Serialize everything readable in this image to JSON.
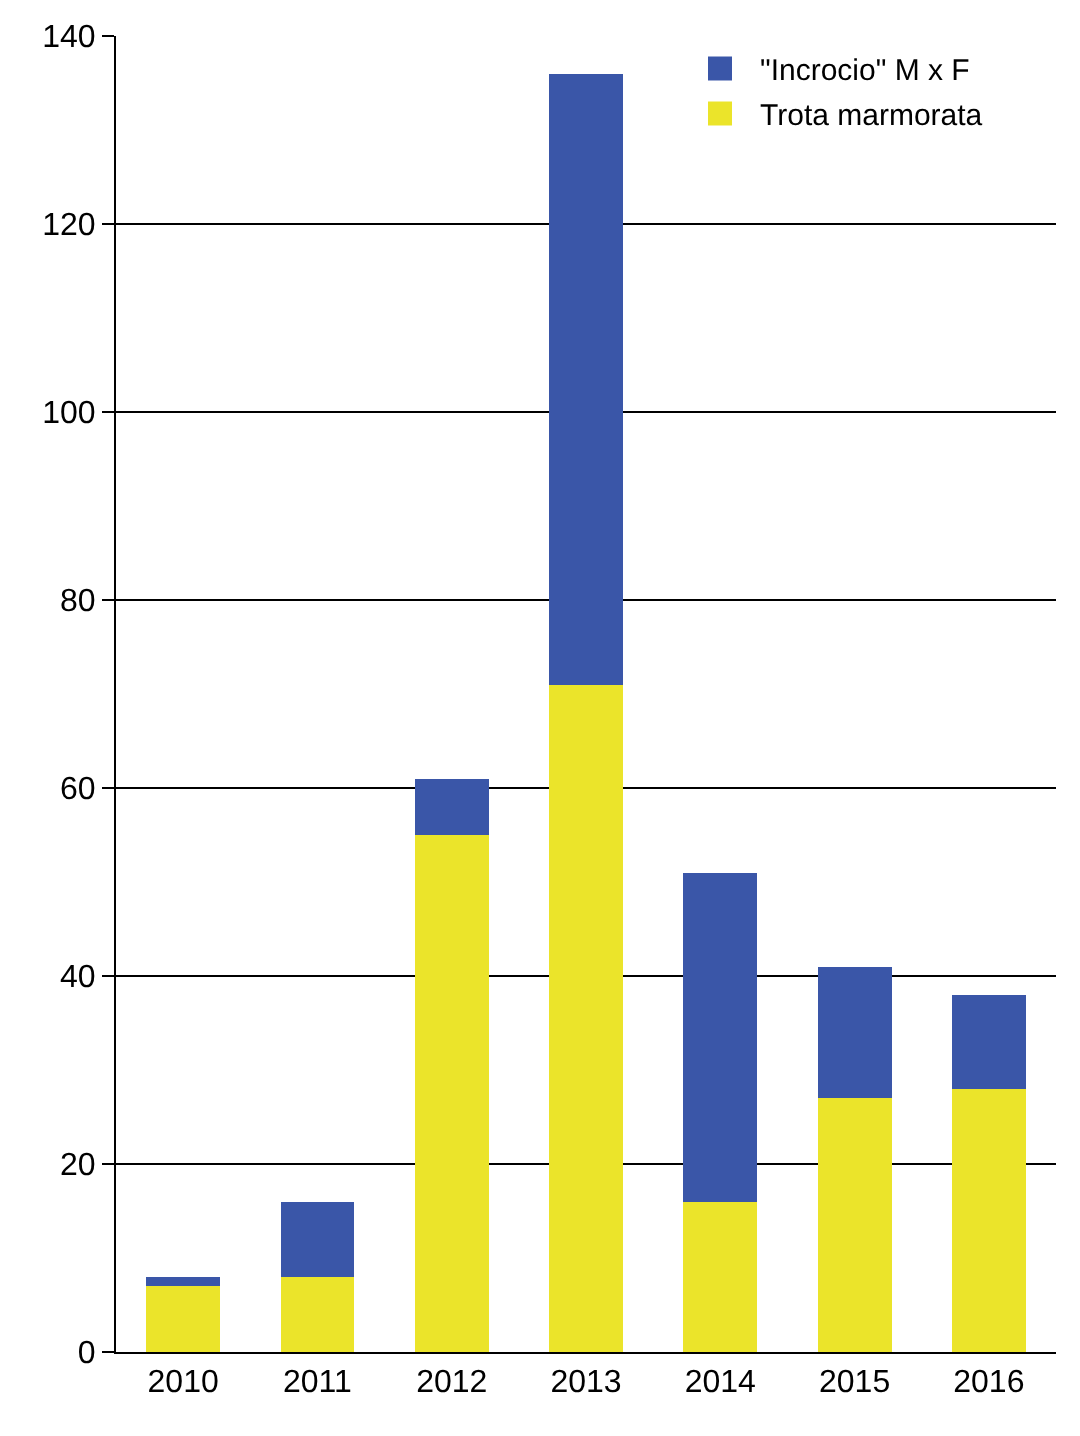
{
  "chart_data": {
    "type": "bar",
    "stacked": true,
    "categories": [
      "2010",
      "2011",
      "2012",
      "2013",
      "2014",
      "2015",
      "2016"
    ],
    "series": [
      {
        "name": "Trota marmorata",
        "color": "#ebe42a",
        "values": [
          7,
          8,
          55,
          71,
          16,
          27,
          28
        ]
      },
      {
        "name": "\"Incrocio\" M x F",
        "color": "#3a56a8",
        "values": [
          1,
          8,
          6,
          65,
          35,
          14,
          10
        ]
      }
    ],
    "ylim": [
      0,
      140
    ],
    "yticks": [
      0,
      20,
      40,
      60,
      80,
      100,
      120,
      140
    ],
    "grid": "y",
    "legend": "top right"
  }
}
